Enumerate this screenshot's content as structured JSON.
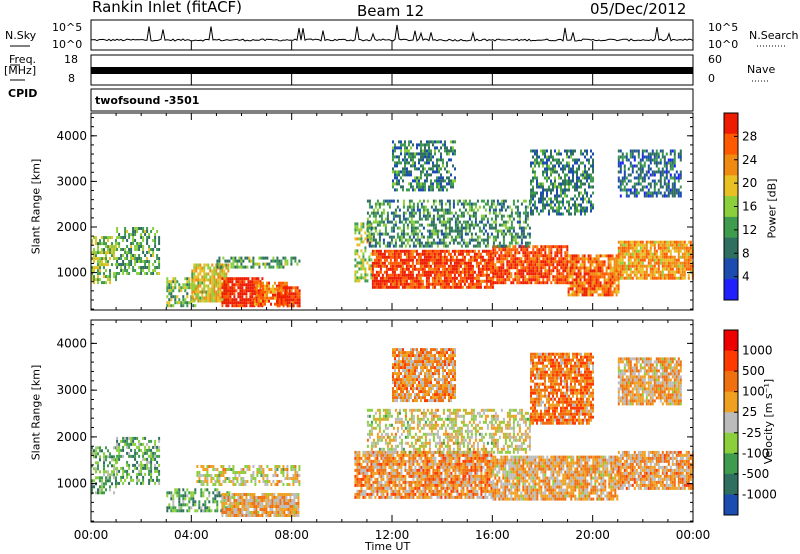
{
  "header": {
    "station": "Rankin Inlet (fitACF)",
    "beam": "Beam 12",
    "date": "05/Dec/2012"
  },
  "strips": {
    "nsky": {
      "label": "N.Sky",
      "ticks": [
        "10^5",
        "10^0"
      ]
    },
    "nsearch": {
      "label": "N.Search"
    },
    "freq": {
      "label_top": "Freq.",
      "label_bottom": "[MHz]",
      "ticks": [
        "18",
        "8"
      ]
    },
    "nave": {
      "label": "Nave",
      "ticks": [
        "60",
        "0"
      ]
    },
    "cpid": {
      "label": "CPID",
      "value": "twofsound -3501"
    }
  },
  "chart_data": [
    {
      "type": "heatmap",
      "panel": "power",
      "ylabel": "Slant Range [km]",
      "xlabel": "",
      "ylim": [
        180,
        4500
      ],
      "yticks": [
        1000,
        2000,
        3000,
        4000
      ],
      "colorbar": {
        "label": "Power [dB]",
        "ticks": [
          "28",
          "24",
          "20",
          "16",
          "12",
          "8",
          "4"
        ],
        "colors": [
          "#2020ff",
          "#1c4cb0",
          "#2f6f60",
          "#3f9c4f",
          "#8ccf3c",
          "#e8c024",
          "#f08a10",
          "#ff5a00",
          "#ee1c00"
        ]
      },
      "regions": [
        {
          "t": [
            0.0,
            1.0
          ],
          "r": [
            800,
            1800
          ],
          "level": 0.5
        },
        {
          "t": [
            1.0,
            2.7
          ],
          "r": [
            1000,
            2000
          ],
          "level": 0.4
        },
        {
          "t": [
            3.0,
            4.2
          ],
          "r": [
            300,
            900
          ],
          "level": 0.45
        },
        {
          "t": [
            4.0,
            5.5
          ],
          "r": [
            400,
            1200
          ],
          "level": 0.6
        },
        {
          "t": [
            5.2,
            6.8
          ],
          "r": [
            300,
            900
          ],
          "level": 0.95
        },
        {
          "t": [
            6.5,
            7.8
          ],
          "r": [
            300,
            800
          ],
          "level": 0.75
        },
        {
          "t": [
            7.4,
            8.3
          ],
          "r": [
            300,
            700
          ],
          "level": 0.9
        },
        {
          "t": [
            5.0,
            8.3
          ],
          "r": [
            1100,
            1350
          ],
          "level": 0.4
        },
        {
          "t": [
            10.5,
            11.2
          ],
          "r": [
            800,
            2100
          ],
          "level": 0.5
        },
        {
          "t": [
            11.2,
            16.0
          ],
          "r": [
            700,
            1500
          ],
          "level": 0.9
        },
        {
          "t": [
            16.0,
            19.0
          ],
          "r": [
            800,
            1600
          ],
          "level": 0.88
        },
        {
          "t": [
            19.0,
            21.0
          ],
          "r": [
            500,
            1400
          ],
          "level": 0.8
        },
        {
          "t": [
            21.0,
            24.0
          ],
          "r": [
            900,
            1700
          ],
          "level": 0.7
        },
        {
          "t": [
            11.0,
            17.5
          ],
          "r": [
            1600,
            2600
          ],
          "level": 0.35
        },
        {
          "t": [
            12.0,
            14.5
          ],
          "r": [
            2800,
            3900
          ],
          "level": 0.3
        },
        {
          "t": [
            17.5,
            20.0
          ],
          "r": [
            2300,
            3700
          ],
          "level": 0.3
        },
        {
          "t": [
            21.0,
            23.5
          ],
          "r": [
            2700,
            3700
          ],
          "level": 0.25
        }
      ]
    },
    {
      "type": "heatmap",
      "panel": "velocity",
      "ylabel": "Slant Range [km]",
      "xlabel": "Time UT",
      "ylim": [
        180,
        4500
      ],
      "yticks": [
        1000,
        2000,
        3000,
        4000
      ],
      "xticks": [
        "00:00",
        "04:00",
        "08:00",
        "12:00",
        "16:00",
        "20:00",
        "00:00"
      ],
      "colorbar": {
        "label": "Velocity [m s⁻¹]",
        "ticks": [
          "1000",
          "500",
          "100",
          "25",
          "-25",
          "-100",
          "-500",
          "-1000"
        ],
        "colors": [
          "#1c4cb0",
          "#2f6f60",
          "#3f9c4f",
          "#8ccf3c",
          "#bbbbbb",
          "#f0a020",
          "#f07010",
          "#ff3a00",
          "#ee0000"
        ]
      },
      "regions": [
        {
          "t": [
            0.0,
            1.0
          ],
          "r": [
            800,
            1800
          ],
          "level": 0.35
        },
        {
          "t": [
            1.0,
            2.7
          ],
          "r": [
            1000,
            2000
          ],
          "level": 0.3
        },
        {
          "t": [
            3.0,
            5.5
          ],
          "r": [
            400,
            900
          ],
          "level": 0.3
        },
        {
          "t": [
            4.2,
            8.3
          ],
          "r": [
            1000,
            1400
          ],
          "level": 0.5
        },
        {
          "t": [
            5.2,
            8.3
          ],
          "r": [
            300,
            800
          ],
          "level": 0.6
        },
        {
          "t": [
            10.5,
            16.0
          ],
          "r": [
            700,
            1700
          ],
          "level": 0.65
        },
        {
          "t": [
            16.0,
            21.0
          ],
          "r": [
            700,
            1600
          ],
          "level": 0.6
        },
        {
          "t": [
            21.0,
            24.0
          ],
          "r": [
            900,
            1700
          ],
          "level": 0.62
        },
        {
          "t": [
            11.0,
            17.5
          ],
          "r": [
            1700,
            2600
          ],
          "level": 0.5
        },
        {
          "t": [
            12.0,
            14.5
          ],
          "r": [
            2800,
            3900
          ],
          "level": 0.65
        },
        {
          "t": [
            17.5,
            20.0
          ],
          "r": [
            2300,
            3800
          ],
          "level": 0.7
        },
        {
          "t": [
            21.0,
            23.5
          ],
          "r": [
            2700,
            3700
          ],
          "level": 0.6
        }
      ]
    }
  ]
}
